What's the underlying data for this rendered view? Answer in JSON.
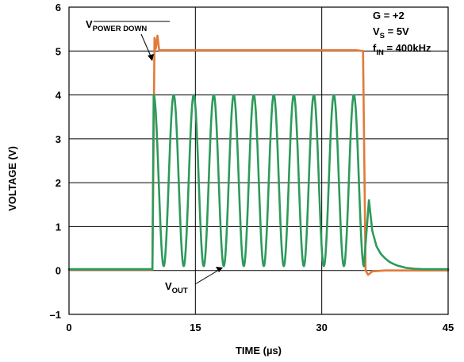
{
  "chart_data": {
    "type": "line",
    "xlabel": "TIME (µs)",
    "ylabel": "VOLTAGE (V)",
    "xlim": [
      0,
      45
    ],
    "ylim": [
      -1,
      6
    ],
    "x_ticks": [
      "0",
      "15",
      "30",
      "45"
    ],
    "y_ticks": [
      "–1",
      "0",
      "1",
      "2",
      "3",
      "4",
      "5",
      "6"
    ],
    "grid": true,
    "series": [
      {
        "name": "V_POWER DOWN",
        "color": "#e07b39",
        "x": [
          0,
          9.9,
          10.15,
          10.3,
          10.5,
          10.7,
          11.0,
          34.0,
          34.9,
          35.2,
          35.5,
          36.0,
          37.5,
          45
        ],
        "y": [
          0.02,
          0.02,
          5.3,
          5.05,
          5.35,
          5.02,
          5.02,
          5.02,
          5.0,
          0.0,
          -0.1,
          -0.02,
          0.0,
          0.0
        ]
      },
      {
        "name": "V_OUT",
        "color": "#2e9a5b",
        "x": [
          0,
          9.9,
          10.05,
          35.0,
          35.6,
          36.0,
          36.5,
          37.0,
          37.5,
          38.0,
          38.5,
          39.0,
          40.0,
          41.0,
          42.0,
          45.0
        ],
        "y": [
          0.03,
          0.03,
          4.0,
          4.0,
          1.6,
          0.9,
          0.55,
          0.38,
          0.28,
          0.2,
          0.15,
          0.11,
          0.06,
          0.04,
          0.03,
          0.03
        ],
        "sine": {
          "x_start": 10.05,
          "x_end": 35.0,
          "cycles": 10.5,
          "min": 0.1,
          "max": 4.0
        }
      }
    ],
    "annotations": {
      "power_down": {
        "main": "V",
        "sub": "POWER DOWN"
      },
      "out": {
        "main": "V",
        "sub": "OUT"
      },
      "conditions": [
        {
          "main": "G = +2",
          "sub": "",
          "rest": ""
        },
        {
          "main": "V",
          "sub": "S",
          "rest": " = 5V"
        },
        {
          "main": "f",
          "sub": "IN",
          "rest": " = 400kHz"
        }
      ]
    }
  }
}
